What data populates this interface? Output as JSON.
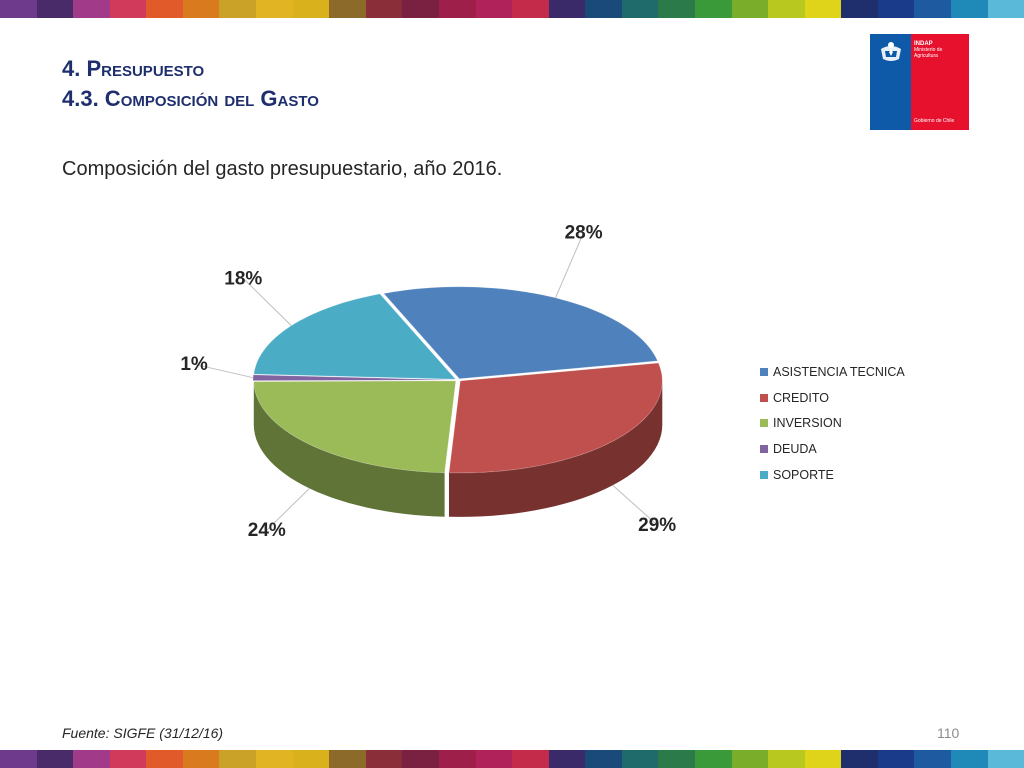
{
  "header": {
    "title_line1": "4. Presupuesto",
    "title_line2": "4.3. Composición del Gasto"
  },
  "logo": {
    "name": "INDAP",
    "ministry_line1": "Ministerio de",
    "ministry_line2": "Agricultura",
    "government": "Gobierno de Chile",
    "colors": {
      "blue": "#0f5aa8",
      "red": "#e8112d"
    }
  },
  "subtitle": "Composición del gasto presupuestario, año 2016.",
  "chart_data": {
    "type": "pie",
    "style": "3d-exploded",
    "legend_position": "right",
    "unit": "%",
    "series": [
      {
        "name": "ASISTENCIA TECNICA",
        "value": 28,
        "label": "28%",
        "color": "#4f81bd"
      },
      {
        "name": "CREDITO",
        "value": 29,
        "label": "29%",
        "color": "#c0504d"
      },
      {
        "name": "INVERSION",
        "value": 24,
        "label": "24%",
        "color": "#9bbb59"
      },
      {
        "name": "DEUDA",
        "value": 1,
        "label": "1%",
        "color": "#8064a2"
      },
      {
        "name": "SOPORTE",
        "value": 18,
        "label": "18%",
        "color": "#4bacc6"
      }
    ]
  },
  "footer": {
    "source": "Fuente: SIGFE (31/12/16)",
    "page_number": "110"
  },
  "decor": {
    "stripe_colors": [
      "#6d3a8c",
      "#4a2b6a",
      "#a23a8a",
      "#d13a5b",
      "#e05a2a",
      "#d97a1e",
      "#c9a227",
      "#e0b422",
      "#d9b11c",
      "#8c6a2a",
      "#8a2e3a",
      "#7a2040",
      "#9e1f4a",
      "#b0225a",
      "#c42a4a",
      "#3a2a6a",
      "#1a4a7a",
      "#1f6a6a",
      "#2a7a4a",
      "#3a9a3a",
      "#7aae2a",
      "#b9c81f",
      "#e0d41a",
      "#1f2f6e",
      "#1a3a8a",
      "#1e5aa0",
      "#1f8ab8",
      "#5ab8d8"
    ]
  }
}
